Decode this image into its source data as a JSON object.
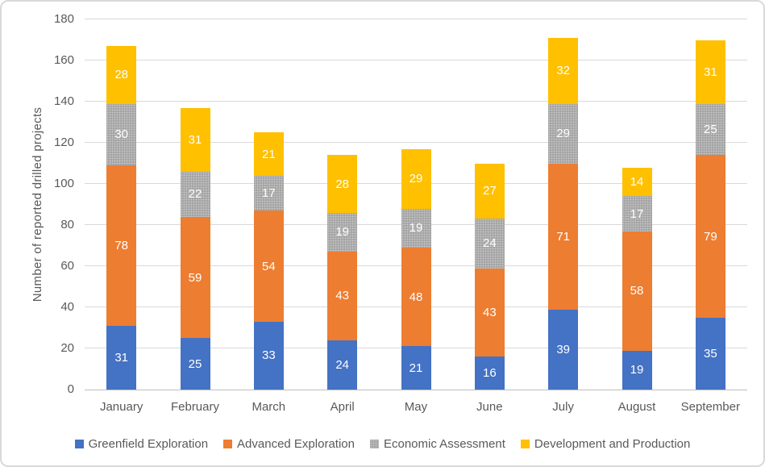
{
  "chart_data": {
    "type": "bar",
    "stacked": true,
    "title": "",
    "ylabel": "Number of reported drilled projects",
    "xlabel": "",
    "ylim": [
      0,
      180
    ],
    "yticks": [
      0,
      20,
      40,
      60,
      80,
      100,
      120,
      140,
      160,
      180
    ],
    "grid": true,
    "legend_position": "bottom",
    "data_labels_color": "#FFFFFF",
    "categories": [
      "January",
      "February",
      "March",
      "April",
      "May",
      "June",
      "July",
      "August",
      "September"
    ],
    "series": [
      {
        "name": "Greenfield Exploration",
        "color": "#4472C4",
        "pattern": "solid",
        "values": [
          31,
          25,
          33,
          24,
          21,
          16,
          39,
          19,
          35
        ]
      },
      {
        "name": "Advanced Exploration",
        "color": "#ED7D31",
        "pattern": "solid",
        "values": [
          78,
          59,
          54,
          43,
          48,
          43,
          71,
          58,
          79
        ]
      },
      {
        "name": "Economic Assessment",
        "color": "#A5A5A5",
        "pattern": "dots",
        "values": [
          30,
          22,
          17,
          19,
          19,
          24,
          29,
          17,
          25
        ]
      },
      {
        "name": "Development and Production",
        "color": "#FFC000",
        "pattern": "solid",
        "values": [
          28,
          31,
          21,
          28,
          29,
          27,
          32,
          14,
          31
        ]
      }
    ],
    "totals": [
      167,
      137,
      125,
      114,
      117,
      110,
      171,
      108,
      170
    ]
  },
  "colors": {
    "gridline": "#D9D9D9",
    "axis_line": "#BFBFBF",
    "tick_text": "#595959",
    "frame_border": "#D9D9D9",
    "background": "#FFFFFF"
  }
}
